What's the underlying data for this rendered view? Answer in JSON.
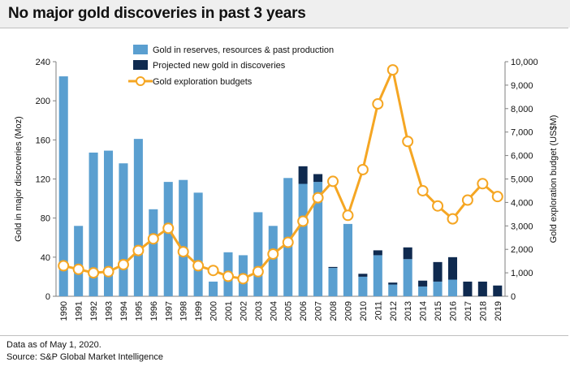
{
  "header": {
    "title": "No major gold discoveries in past 3 years"
  },
  "footer": {
    "note": "Data as of May 1, 2020.",
    "source": "Source: S&P Global Market Intelligence"
  },
  "colors": {
    "reserves": "#5a9fd0",
    "projected": "#0f2a4f",
    "budget": "#f5a623"
  },
  "chart_data": {
    "type": "bar",
    "title": "No major gold discoveries in past 3 years",
    "categories": [
      "1990",
      "1991",
      "1992",
      "1993",
      "1994",
      "1995",
      "1996",
      "1997",
      "1998",
      "1999",
      "2000",
      "2001",
      "2002",
      "2003",
      "2004",
      "2005",
      "2006",
      "2007",
      "2008",
      "2009",
      "2010",
      "2011",
      "2012",
      "2013",
      "2014",
      "2015",
      "2016",
      "2017",
      "2018",
      "2019"
    ],
    "series": [
      {
        "name": "Gold in reserves, resources & past production",
        "kind": "bar-stack",
        "axis": "left",
        "values": [
          225,
          72,
          147,
          149,
          136,
          161,
          89,
          117,
          119,
          106,
          15,
          45,
          42,
          86,
          72,
          121,
          115,
          117,
          29,
          74,
          20,
          42,
          12,
          38,
          10,
          15,
          17,
          0,
          0,
          0
        ]
      },
      {
        "name": "Projected new gold in discoveries",
        "kind": "bar-stack",
        "axis": "left",
        "values": [
          0,
          0,
          0,
          0,
          0,
          0,
          0,
          0,
          0,
          0,
          0,
          0,
          0,
          0,
          0,
          0,
          18,
          8,
          1,
          0,
          3,
          5,
          2,
          12,
          6,
          20,
          23,
          15,
          15,
          11
        ]
      },
      {
        "name": "Gold exploration budgets",
        "kind": "line",
        "axis": "right",
        "values": [
          1300,
          1150,
          1000,
          1050,
          1350,
          1950,
          2450,
          2900,
          1900,
          1300,
          1100,
          850,
          750,
          1050,
          1800,
          2300,
          3200,
          4200,
          4900,
          3450,
          5400,
          8200,
          9650,
          6600,
          4500,
          3850,
          3300,
          4100,
          4800,
          4250
        ]
      }
    ],
    "ylabel": "Gold in major discoveries (Moz)",
    "ylabel_right": "Gold exploration budget (US$M)",
    "ylim": [
      0,
      240
    ],
    "ylim_right": [
      0,
      10000
    ],
    "yticks": [
      "0",
      "40",
      "80",
      "120",
      "160",
      "200",
      "240"
    ],
    "yticks_right": [
      "0",
      "1,000",
      "2,000",
      "3,000",
      "4,000",
      "5,000",
      "6,000",
      "7,000",
      "8,000",
      "9,000",
      "10,000"
    ],
    "legend_position": "top-center",
    "grid": false
  }
}
